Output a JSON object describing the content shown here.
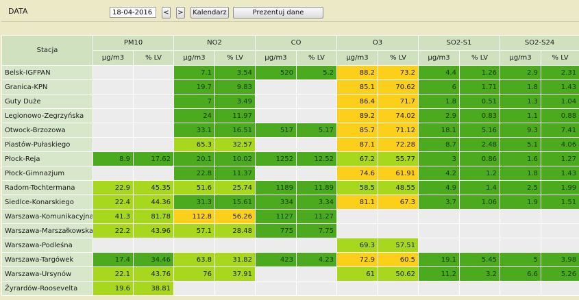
{
  "toolbar": {
    "date_label": "DATA",
    "date_value": "18-04-2016",
    "prev_label": "<",
    "next_label": ">",
    "calendar_label": "Kalendarz",
    "present_label": "Prezentuj dane"
  },
  "colors": {
    "green": "#4caa1f",
    "light_green": "#a7d81e",
    "yellow": "#fcd01a",
    "empty": "#ececec",
    "header": "#cfe1bf"
  },
  "table": {
    "station_header": "Stacja",
    "groups": [
      "PM10",
      "NO2",
      "CO",
      "O3",
      "SO2-S1",
      "SO2-S24"
    ],
    "subheaders": [
      "µg/m3",
      "% LV"
    ],
    "rows": [
      {
        "name": "Belsk-IGFPAN",
        "cells": [
          [
            "",
            ""
          ],
          [
            "7.1",
            "3.54"
          ],
          [
            "520",
            "5.2"
          ],
          [
            "88.2",
            "73.2"
          ],
          [
            "4.4",
            "1.26"
          ],
          [
            "2.9",
            "2.31"
          ]
        ],
        "colors": [
          "e",
          "g",
          "g",
          "y",
          "g",
          "g"
        ]
      },
      {
        "name": "Granica-KPN",
        "cells": [
          [
            "",
            ""
          ],
          [
            "19.7",
            "9.83"
          ],
          [
            "",
            ""
          ],
          [
            "85.1",
            "70.62"
          ],
          [
            "6",
            "1.71"
          ],
          [
            "1.8",
            "1.43"
          ]
        ],
        "colors": [
          "e",
          "g",
          "e",
          "y",
          "g",
          "g"
        ]
      },
      {
        "name": "Guty Duże",
        "cells": [
          [
            "",
            ""
          ],
          [
            "7",
            "3.49"
          ],
          [
            "",
            ""
          ],
          [
            "86.4",
            "71.7"
          ],
          [
            "1.8",
            "0.51"
          ],
          [
            "1.3",
            "1.04"
          ]
        ],
        "colors": [
          "e",
          "g",
          "e",
          "y",
          "g",
          "g"
        ]
      },
      {
        "name": "Legionowo-Zegrzyńska",
        "cells": [
          [
            "",
            ""
          ],
          [
            "24",
            "11.97"
          ],
          [
            "",
            ""
          ],
          [
            "89.2",
            "74.02"
          ],
          [
            "2.9",
            "0.83"
          ],
          [
            "1.1",
            "0.88"
          ]
        ],
        "colors": [
          "e",
          "g",
          "e",
          "y",
          "g",
          "g"
        ]
      },
      {
        "name": "Otwock-Brzozowa",
        "cells": [
          [
            "",
            ""
          ],
          [
            "33.1",
            "16.51"
          ],
          [
            "517",
            "5.17"
          ],
          [
            "85.7",
            "71.12"
          ],
          [
            "18.1",
            "5.16"
          ],
          [
            "9.3",
            "7.41"
          ]
        ],
        "colors": [
          "e",
          "g",
          "g",
          "y",
          "g",
          "g"
        ]
      },
      {
        "name": "Piastów-Pułaskiego",
        "cells": [
          [
            "",
            ""
          ],
          [
            "65.3",
            "32.57"
          ],
          [
            "",
            ""
          ],
          [
            "87.1",
            "72.28"
          ],
          [
            "8.7",
            "2.48"
          ],
          [
            "5.1",
            "4.06"
          ]
        ],
        "colors": [
          "e",
          "l",
          "e",
          "y",
          "g",
          "g"
        ]
      },
      {
        "name": "Płock-Reja",
        "cells": [
          [
            "8.9",
            "17.62"
          ],
          [
            "20.1",
            "10.02"
          ],
          [
            "1252",
            "12.52"
          ],
          [
            "67.2",
            "55.77"
          ],
          [
            "3",
            "0.86"
          ],
          [
            "1.6",
            "1.27"
          ]
        ],
        "colors": [
          "g",
          "g",
          "g",
          "l",
          "g",
          "g"
        ]
      },
      {
        "name": "Płock-Gimnazjum",
        "cells": [
          [
            "",
            ""
          ],
          [
            "22.8",
            "11.37"
          ],
          [
            "",
            ""
          ],
          [
            "74.6",
            "61.91"
          ],
          [
            "4.2",
            "1.2"
          ],
          [
            "1.8",
            "1.43"
          ]
        ],
        "colors": [
          "e",
          "g",
          "e",
          "y",
          "g",
          "g"
        ]
      },
      {
        "name": "Radom-Tochtermana",
        "cells": [
          [
            "22.9",
            "45.35"
          ],
          [
            "51.6",
            "25.74"
          ],
          [
            "1189",
            "11.89"
          ],
          [
            "58.5",
            "48.55"
          ],
          [
            "4.9",
            "1.4"
          ],
          [
            "2.5",
            "1.99"
          ]
        ],
        "colors": [
          "l",
          "l",
          "g",
          "l",
          "g",
          "g"
        ]
      },
      {
        "name": "Siedlce-Konarskiego",
        "cells": [
          [
            "22.4",
            "44.36"
          ],
          [
            "31.3",
            "15.61"
          ],
          [
            "334",
            "3.34"
          ],
          [
            "81.1",
            "67.3"
          ],
          [
            "3.7",
            "1.06"
          ],
          [
            "1.9",
            "1.51"
          ]
        ],
        "colors": [
          "l",
          "g",
          "g",
          "y",
          "g",
          "g"
        ]
      },
      {
        "name": "Warszawa-Komunikacyjna",
        "cells": [
          [
            "41.3",
            "81.78"
          ],
          [
            "112.8",
            "56.26"
          ],
          [
            "1127",
            "11.27"
          ],
          [
            "",
            ""
          ],
          [
            "",
            ""
          ],
          [
            "",
            ""
          ]
        ],
        "colors": [
          "l",
          "y",
          "g",
          "e",
          "e",
          "e"
        ]
      },
      {
        "name": "Warszawa-Marszałkowska",
        "cells": [
          [
            "22.2",
            "43.96"
          ],
          [
            "57.1",
            "28.48"
          ],
          [
            "775",
            "7.75"
          ],
          [
            "",
            ""
          ],
          [
            "",
            ""
          ],
          [
            "",
            ""
          ]
        ],
        "colors": [
          "l",
          "l",
          "g",
          "e",
          "e",
          "e"
        ]
      },
      {
        "name": "Warszawa-Podleśna",
        "cells": [
          [
            "",
            ""
          ],
          [
            "",
            ""
          ],
          [
            "",
            ""
          ],
          [
            "69.3",
            "57.51"
          ],
          [
            "",
            ""
          ],
          [
            "",
            ""
          ]
        ],
        "colors": [
          "e",
          "e",
          "e",
          "l",
          "e",
          "e"
        ]
      },
      {
        "name": "Warszawa-Targówek",
        "cells": [
          [
            "17.4",
            "34.46"
          ],
          [
            "63.8",
            "31.82"
          ],
          [
            "423",
            "4.23"
          ],
          [
            "72.9",
            "60.5"
          ],
          [
            "19.1",
            "5.45"
          ],
          [
            "5",
            "3.98"
          ]
        ],
        "colors": [
          "g",
          "l",
          "g",
          "y",
          "g",
          "g"
        ]
      },
      {
        "name": "Warszawa-Ursynów",
        "cells": [
          [
            "22.1",
            "43.76"
          ],
          [
            "76",
            "37.91"
          ],
          [
            "",
            ""
          ],
          [
            "61",
            "50.62"
          ],
          [
            "11.2",
            "3.2"
          ],
          [
            "6.6",
            "5.26"
          ]
        ],
        "colors": [
          "l",
          "l",
          "e",
          "l",
          "g",
          "g"
        ]
      },
      {
        "name": "Żyrardów-Roosevelta",
        "cells": [
          [
            "19.6",
            "38.81"
          ],
          [
            "",
            ""
          ],
          [
            "",
            ""
          ],
          [
            "",
            ""
          ],
          [
            "",
            ""
          ],
          [
            "",
            ""
          ]
        ],
        "colors": [
          "l",
          "e",
          "e",
          "e",
          "e",
          "e"
        ]
      }
    ]
  }
}
